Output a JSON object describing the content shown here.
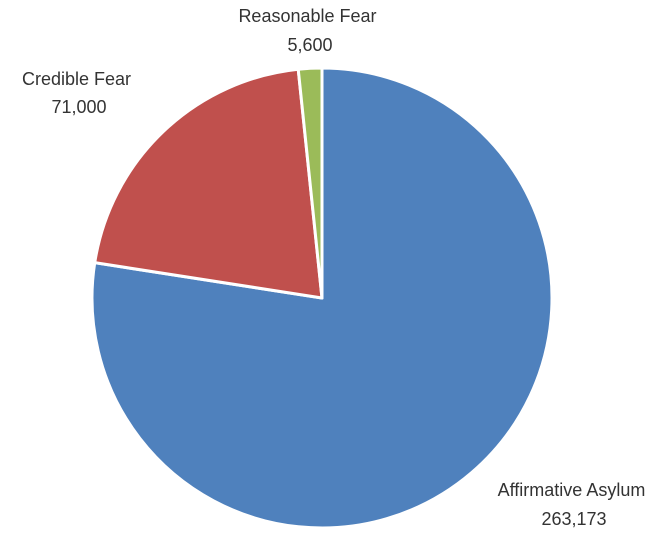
{
  "chart_data": {
    "type": "pie",
    "title": "",
    "start_angle_deg": 90,
    "direction": "clockwise",
    "slices": [
      {
        "label": "Affirmative Asylum",
        "value": 263173,
        "value_label": "263,173",
        "color": "#4F81BD"
      },
      {
        "label": "Credible Fear",
        "value": 71000,
        "value_label": "71,000",
        "color": "#C0504D"
      },
      {
        "label": "Reasonable Fear",
        "value": 5600,
        "value_label": "5,600",
        "color": "#9BBB59"
      }
    ],
    "legend": "none",
    "data_labels": "outside"
  }
}
